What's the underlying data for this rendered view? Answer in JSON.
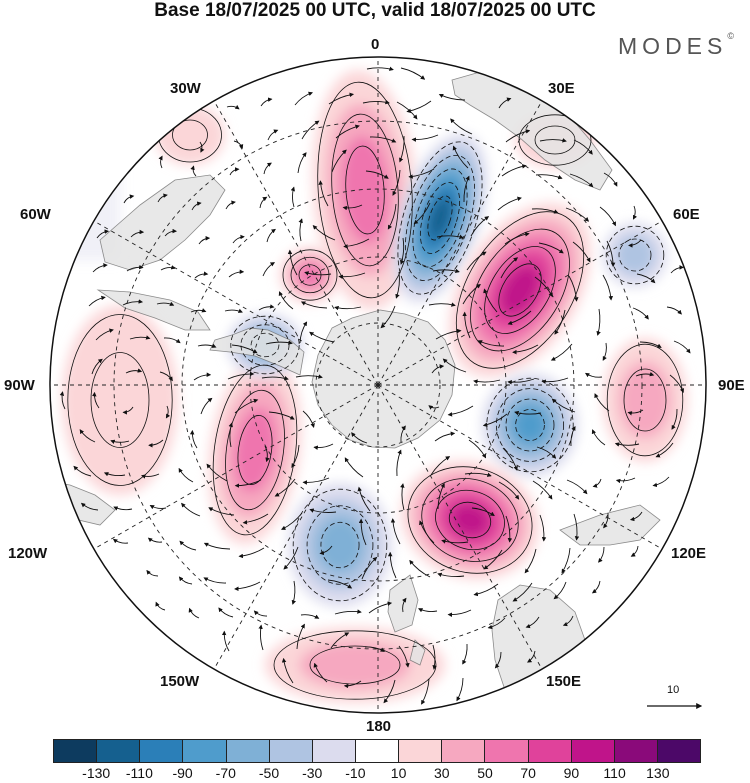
{
  "title": "Base 18/07/2025 00 UTC, valid 18/07/2025 00 UTC",
  "brand": {
    "name": "MODES",
    "mark": "©"
  },
  "projection": "south polar stereographic",
  "longitude_labels": [
    "0",
    "30E",
    "60E",
    "90E",
    "120E",
    "150E",
    "180",
    "150W",
    "120W",
    "90W",
    "60W",
    "30W"
  ],
  "reference_vector": {
    "value": "10"
  },
  "colorbar": {
    "ticks": [
      "-130",
      "-110",
      "-90",
      "-70",
      "-50",
      "-30",
      "-10",
      "10",
      "30",
      "50",
      "70",
      "90",
      "110",
      "130"
    ],
    "colors": [
      "#0d3b5f",
      "#15608f",
      "#2b7fb8",
      "#4f9ccc",
      "#7fb0d6",
      "#afc4e2",
      "#dcdcee",
      "#ffffff",
      "#fbd6d8",
      "#f6a8c0",
      "#ef75ae",
      "#e0429b",
      "#c0148a",
      "#8a0a7a",
      "#4c0868"
    ]
  },
  "colors": {
    "land": "#e4e4e4",
    "coast": "#777777",
    "grid": "#222222",
    "arrow": "#111111",
    "contour": "#111111"
  }
}
